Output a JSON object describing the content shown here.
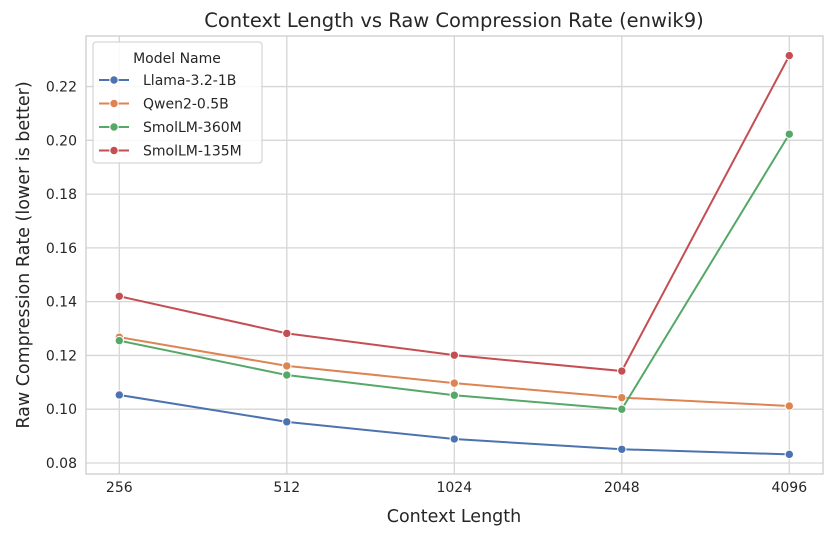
{
  "chart_data": {
    "type": "line",
    "title": "Context Length vs Raw Compression Rate (enwik9)",
    "xlabel": "Context Length",
    "ylabel": "Raw Compression Rate (lower is better)",
    "categories": [
      "256",
      "512",
      "1024",
      "2048",
      "4096"
    ],
    "yticks": [
      "0.08",
      "0.10",
      "0.12",
      "0.14",
      "0.16",
      "0.18",
      "0.20",
      "0.22"
    ],
    "ylim": [
      0.0759,
      0.2388
    ],
    "grid": true,
    "legend": {
      "title": "Model Name",
      "placement": "top-left"
    },
    "series": [
      {
        "name": "Llama-3.2-1B",
        "color": "#4c72b0",
        "values": [
          0.1053,
          0.0953,
          0.0889,
          0.0851,
          0.0832
        ]
      },
      {
        "name": "Qwen2-0.5B",
        "color": "#dd8452",
        "values": [
          0.1268,
          0.1161,
          0.1097,
          0.1043,
          0.1012
        ]
      },
      {
        "name": "SmolLM-360M",
        "color": "#55a868",
        "values": [
          0.1255,
          0.1127,
          0.1052,
          0.1,
          0.2023
        ]
      },
      {
        "name": "SmolLM-135M",
        "color": "#c44e52",
        "values": [
          0.142,
          0.1282,
          0.1201,
          0.1142,
          0.2315
        ]
      }
    ]
  }
}
